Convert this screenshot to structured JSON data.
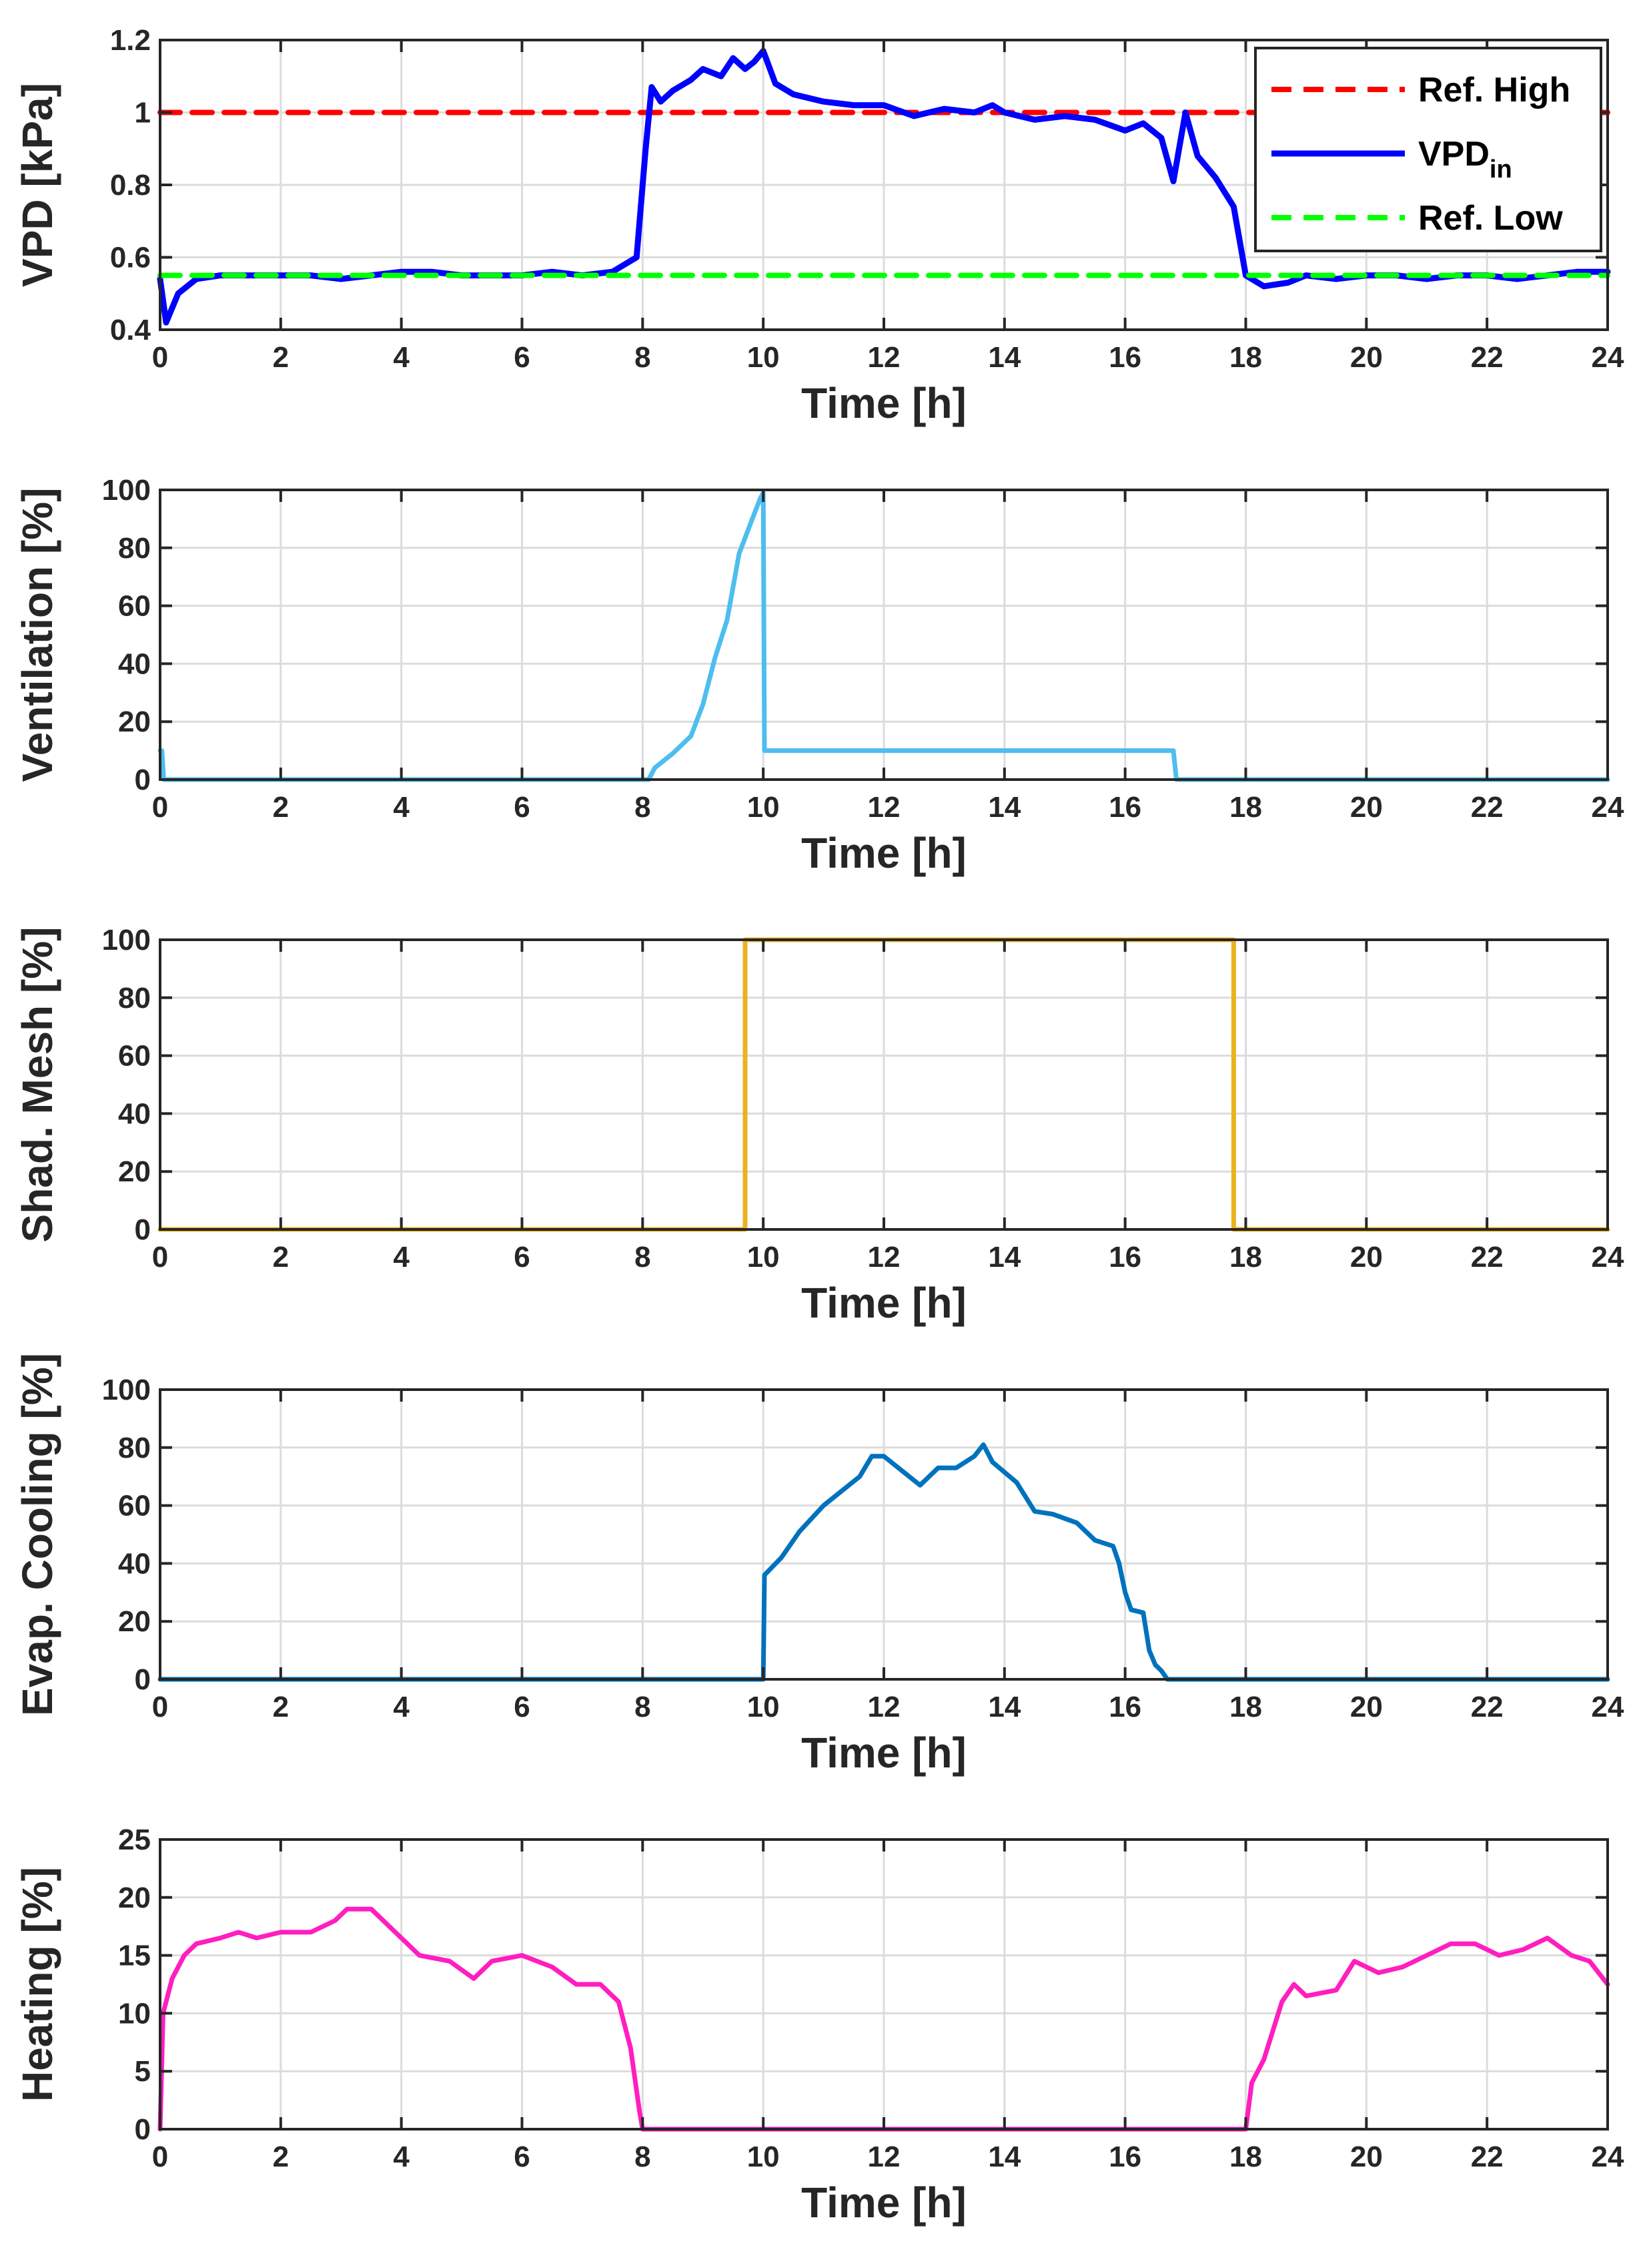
{
  "chart_data": [
    {
      "type": "line",
      "id": "vpd",
      "xlabel": "Time [h]",
      "ylabel": "VPD [kPa]",
      "xlim": [
        0,
        24
      ],
      "ylim": [
        0.4,
        1.2
      ],
      "xticks": [
        0,
        2,
        4,
        6,
        8,
        10,
        12,
        14,
        16,
        18,
        20,
        22,
        24
      ],
      "yticks": [
        0.4,
        0.6,
        0.8,
        1,
        1.2
      ],
      "ytick_labels": [
        "0.4",
        "0.6",
        "0.8",
        "1",
        "1.2"
      ],
      "legend_position": "top-right",
      "series": [
        {
          "name": "Ref. High",
          "color": "#ff0000",
          "dash": "dashed",
          "x": [
            0,
            24
          ],
          "y": [
            1.0,
            1.0
          ]
        },
        {
          "name": "VPD",
          "name_sub": "in",
          "color": "#0000ff",
          "dash": "solid",
          "x": [
            0,
            0.1,
            0.3,
            0.6,
            1,
            1.5,
            2,
            2.5,
            3,
            3.5,
            4,
            4.5,
            5,
            5.5,
            6,
            6.5,
            7,
            7.5,
            7.9,
            8.05,
            8.15,
            8.3,
            8.5,
            8.8,
            9,
            9.3,
            9.5,
            9.7,
            9.85,
            10,
            10.2,
            10.5,
            11,
            11.5,
            12,
            12.5,
            13,
            13.5,
            13.8,
            14,
            14.5,
            15,
            15.5,
            16,
            16.3,
            16.6,
            16.8,
            17,
            17.2,
            17.5,
            17.8,
            18,
            18.3,
            18.7,
            19,
            19.5,
            20,
            20.5,
            21,
            21.5,
            22,
            22.5,
            23,
            23.5,
            24
          ],
          "y": [
            0.54,
            0.42,
            0.5,
            0.54,
            0.55,
            0.55,
            0.55,
            0.55,
            0.54,
            0.55,
            0.56,
            0.56,
            0.55,
            0.55,
            0.55,
            0.56,
            0.55,
            0.56,
            0.6,
            0.9,
            1.07,
            1.03,
            1.06,
            1.09,
            1.12,
            1.1,
            1.15,
            1.12,
            1.14,
            1.17,
            1.08,
            1.05,
            1.03,
            1.02,
            1.02,
            0.99,
            1.01,
            1.0,
            1.02,
            1.0,
            0.98,
            0.99,
            0.98,
            0.95,
            0.97,
            0.93,
            0.81,
            1.0,
            0.88,
            0.82,
            0.74,
            0.55,
            0.52,
            0.53,
            0.55,
            0.54,
            0.55,
            0.55,
            0.54,
            0.55,
            0.55,
            0.54,
            0.55,
            0.56,
            0.56
          ]
        },
        {
          "name": "Ref. Low",
          "color": "#00ff00",
          "dash": "dashed",
          "x": [
            0,
            24
          ],
          "y": [
            0.55,
            0.55
          ]
        }
      ]
    },
    {
      "type": "line",
      "id": "ventilation",
      "xlabel": "Time [h]",
      "ylabel": "Ventilation [%]",
      "xlim": [
        0,
        24
      ],
      "ylim": [
        0,
        100
      ],
      "xticks": [
        0,
        2,
        4,
        6,
        8,
        10,
        12,
        14,
        16,
        18,
        20,
        22,
        24
      ],
      "yticks": [
        0,
        20,
        40,
        60,
        80,
        100
      ],
      "ytick_labels": [
        "0",
        "20",
        "40",
        "60",
        "80",
        "100"
      ],
      "series": [
        {
          "name": "Ventilation",
          "color": "#4dbeee",
          "dash": "solid",
          "x": [
            0,
            0.03,
            0.06,
            8.1,
            8.2,
            8.5,
            8.8,
            9.0,
            9.2,
            9.4,
            9.6,
            9.8,
            9.95,
            10.0,
            10.02,
            16.8,
            16.85,
            24
          ],
          "y": [
            10,
            10,
            0,
            0,
            4,
            9,
            15,
            26,
            42,
            55,
            78,
            89,
            97,
            99,
            10,
            10,
            0,
            0
          ]
        }
      ]
    },
    {
      "type": "line",
      "id": "shading",
      "xlabel": "Time [h]",
      "ylabel": "Shad. Mesh [%]",
      "xlim": [
        0,
        24
      ],
      "ylim": [
        0,
        100
      ],
      "xticks": [
        0,
        2,
        4,
        6,
        8,
        10,
        12,
        14,
        16,
        18,
        20,
        22,
        24
      ],
      "yticks": [
        0,
        20,
        40,
        60,
        80,
        100
      ],
      "ytick_labels": [
        "0",
        "20",
        "40",
        "60",
        "80",
        "100"
      ],
      "series": [
        {
          "name": "Shad. Mesh",
          "color": "#edb120",
          "dash": "solid",
          "x": [
            0,
            9.7,
            9.7,
            17.8,
            17.8,
            24
          ],
          "y": [
            0,
            0,
            100,
            100,
            0,
            0
          ]
        }
      ]
    },
    {
      "type": "line",
      "id": "cooling",
      "xlabel": "Time [h]",
      "ylabel": "Evap. Cooling [%]",
      "xlim": [
        0,
        24
      ],
      "ylim": [
        0,
        100
      ],
      "xticks": [
        0,
        2,
        4,
        6,
        8,
        10,
        12,
        14,
        16,
        18,
        20,
        22,
        24
      ],
      "yticks": [
        0,
        20,
        40,
        60,
        80,
        100
      ],
      "ytick_labels": [
        "0",
        "20",
        "40",
        "60",
        "80",
        "100"
      ],
      "series": [
        {
          "name": "Evap. Cooling",
          "color": "#0072bd",
          "dash": "solid",
          "x": [
            0,
            10.0,
            10.02,
            10.3,
            10.6,
            11.0,
            11.3,
            11.6,
            11.8,
            12.0,
            12.3,
            12.6,
            12.9,
            13.2,
            13.5,
            13.65,
            13.8,
            14.2,
            14.5,
            14.8,
            15.2,
            15.5,
            15.8,
            15.9,
            16.0,
            16.1,
            16.3,
            16.4,
            16.5,
            16.6,
            16.7,
            24
          ],
          "y": [
            0,
            0,
            36,
            42,
            51,
            60,
            65,
            70,
            77,
            77,
            72,
            67,
            73,
            73,
            77,
            81,
            75,
            68,
            58,
            57,
            54,
            48,
            46,
            40,
            30,
            24,
            23,
            10,
            5,
            3,
            0,
            0
          ]
        }
      ]
    },
    {
      "type": "line",
      "id": "heating",
      "xlabel": "Time [h]",
      "ylabel": "Heating [%]",
      "xlim": [
        0,
        24
      ],
      "ylim": [
        0,
        25
      ],
      "xticks": [
        0,
        2,
        4,
        6,
        8,
        10,
        12,
        14,
        16,
        18,
        20,
        22,
        24
      ],
      "yticks": [
        0,
        5,
        10,
        15,
        20,
        25
      ],
      "ytick_labels": [
        "0",
        "5",
        "10",
        "15",
        "20",
        "25"
      ],
      "series": [
        {
          "name": "Heating",
          "color": "#ff1ebf",
          "dash": "solid",
          "x": [
            0,
            0.05,
            0.2,
            0.4,
            0.6,
            1,
            1.3,
            1.6,
            2,
            2.5,
            2.9,
            3.1,
            3.5,
            3.9,
            4.3,
            4.8,
            5.2,
            5.5,
            6,
            6.5,
            6.9,
            7.3,
            7.6,
            7.8,
            7.95,
            8.0,
            18.0,
            18.1,
            18.3,
            18.6,
            18.8,
            19.0,
            19.5,
            19.8,
            20.2,
            20.6,
            21.0,
            21.4,
            21.8,
            22.2,
            22.6,
            23.0,
            23.4,
            23.7,
            24
          ],
          "y": [
            0,
            10,
            13,
            15,
            16,
            16.5,
            17,
            16.5,
            17,
            17,
            18,
            19,
            19,
            17,
            15,
            14.5,
            13,
            14.5,
            15,
            14,
            12.5,
            12.5,
            11,
            7,
            1.5,
            0,
            0,
            4,
            6,
            11,
            12.5,
            11.5,
            12,
            14.5,
            13.5,
            14,
            15,
            16,
            16,
            15,
            15.5,
            16.5,
            15,
            14.5,
            12.5
          ]
        }
      ]
    }
  ]
}
